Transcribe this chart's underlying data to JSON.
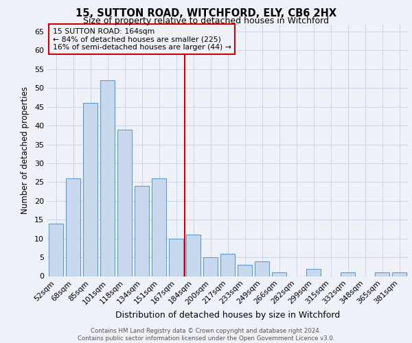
{
  "title1": "15, SUTTON ROAD, WITCHFORD, ELY, CB6 2HX",
  "title2": "Size of property relative to detached houses in Witchford",
  "xlabel": "Distribution of detached houses by size in Witchford",
  "ylabel": "Number of detached properties",
  "categories": [
    "52sqm",
    "68sqm",
    "85sqm",
    "101sqm",
    "118sqm",
    "134sqm",
    "151sqm",
    "167sqm",
    "184sqm",
    "200sqm",
    "217sqm",
    "233sqm",
    "249sqm",
    "266sqm",
    "282sqm",
    "299sqm",
    "315sqm",
    "332sqm",
    "348sqm",
    "365sqm",
    "381sqm"
  ],
  "values": [
    14,
    26,
    46,
    52,
    39,
    24,
    26,
    10,
    11,
    5,
    6,
    3,
    4,
    1,
    0,
    2,
    0,
    1,
    0,
    1,
    1
  ],
  "bar_color": "#c9d9ed",
  "bar_edge_color": "#5b9bd5",
  "grid_color": "#c8d4e8",
  "red_line_x": 7.5,
  "annotation_text1": "15 SUTTON ROAD: 164sqm",
  "annotation_text2": "← 84% of detached houses are smaller (225)",
  "annotation_text3": "16% of semi-detached houses are larger (44) →",
  "red_line_color": "#cc0000",
  "box_edge_color": "#cc0000",
  "ylim": [
    0,
    67
  ],
  "yticks": [
    0,
    5,
    10,
    15,
    20,
    25,
    30,
    35,
    40,
    45,
    50,
    55,
    60,
    65
  ],
  "footer1": "Contains HM Land Registry data © Crown copyright and database right 2024.",
  "footer2": "Contains public sector information licensed under the Open Government Licence v3.0.",
  "bg_color": "#eef2f8"
}
